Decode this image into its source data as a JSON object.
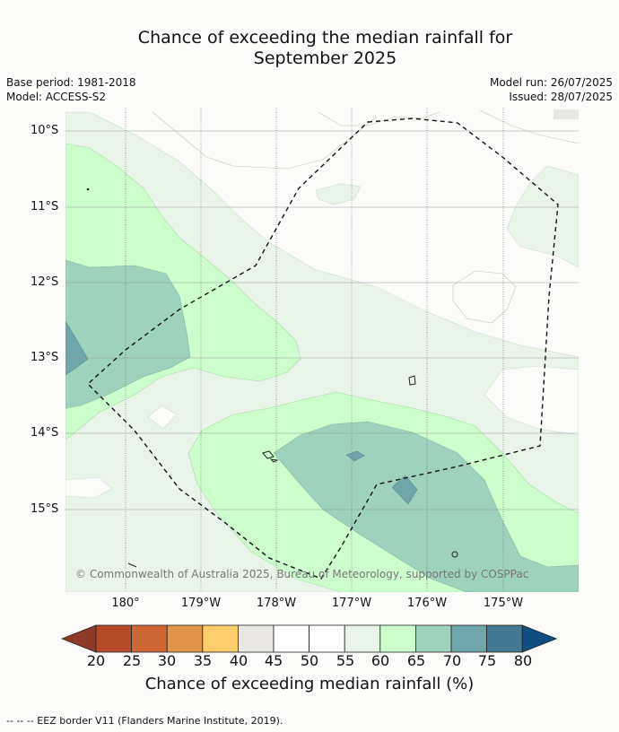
{
  "title_line1": "Chance of exceeding the median rainfall for",
  "title_line2": "September 2025",
  "base_period": "Base period: 1981-2018",
  "model": "Model: ACCESS-S2",
  "model_run": "Model run: 26/07/2025",
  "issued": "Issued: 28/07/2025",
  "lat_labels": [
    "10°S",
    "11°S",
    "12°S",
    "13°S",
    "14°S",
    "15°S"
  ],
  "lon_labels": [
    "180°",
    "179°W",
    "178°W",
    "177°W",
    "176°W",
    "175°W"
  ],
  "credit": "© Commonwealth of Australia 2025, Bureau of Meteorology, supported by COSPPac",
  "colorbar": {
    "ticks": [
      "20",
      "25",
      "30",
      "35",
      "40",
      "45",
      "50",
      "55",
      "60",
      "65",
      "70",
      "75",
      "80"
    ],
    "colors": [
      "#8e3b25",
      "#b34b28",
      "#cc6735",
      "#e0944a",
      "#fdcd6a",
      "#e9e8e4",
      "#ffffff",
      "#ffffff",
      "#eaf5ea",
      "#ccffcc",
      "#9dd3bd",
      "#6ea6aa",
      "#437994",
      "#104d82"
    ],
    "label": "Chance of exceeding median rainfall (%)"
  },
  "footer": "--  --  -- EEZ border V11 (Flanders Marine Institute, 2019).",
  "colors": {
    "c55_60": "#eaf5ea",
    "c60_65": "#ccffcc",
    "c65_70": "#9dd3bd",
    "c70_75": "#6ea6aa",
    "background": "#fbfcfa"
  }
}
